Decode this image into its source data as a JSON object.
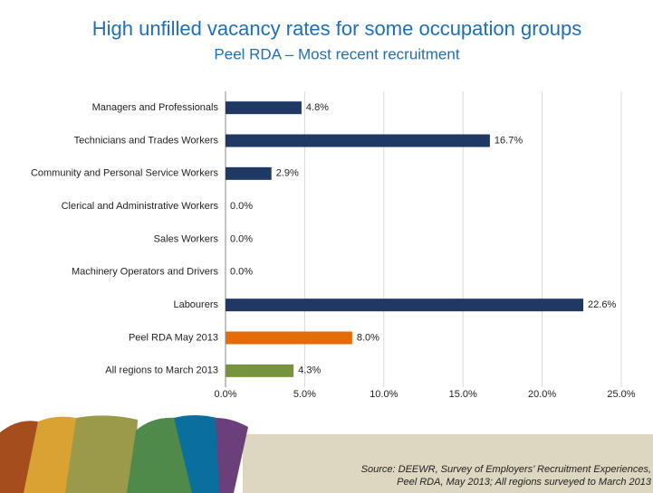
{
  "chart_data": {
    "type": "barh",
    "title": "High unfilled vacancy rates for some occupation groups",
    "subtitle": "Peel RDA – Most recent recruitment",
    "categories": [
      "Managers and Professionals",
      "Technicians and Trades Workers",
      "Community and Personal Service Workers",
      "Clerical and Administrative Workers",
      "Sales Workers",
      "Machinery Operators and Drivers",
      "Labourers",
      "Peel RDA May 2013",
      "All regions to March 2013"
    ],
    "values": [
      4.8,
      16.7,
      2.9,
      0,
      0,
      0,
      22.6,
      8.0,
      4.3
    ],
    "value_labels": [
      "4.8%",
      "16.7%",
      "2.9%",
      "0.0%",
      "0.0%",
      "0.0%",
      "22.6%",
      "8.0%",
      "4.3%"
    ],
    "colors": [
      "#1f3864",
      "#1f3864",
      "#1f3864",
      "#1f3864",
      "#1f3864",
      "#1f3864",
      "#1f3864",
      "#e36c09",
      "#77933c"
    ],
    "xlim": [
      0,
      25
    ],
    "xticks": [
      {
        "value": 0,
        "label": "0.0%"
      },
      {
        "value": 5,
        "label": "5.0%"
      },
      {
        "value": 10,
        "label": "10.0%"
      },
      {
        "value": 15,
        "label": "15.0%"
      },
      {
        "value": 20,
        "label": "20.0%"
      },
      {
        "value": 25,
        "label": "25.0%"
      }
    ],
    "grid": true,
    "source": [
      "Source:  DEEWR, Survey of Employers’ Recruitment Experiences,",
      "Peel RDA, May 2013; All regions surveyed to March 2013"
    ]
  }
}
